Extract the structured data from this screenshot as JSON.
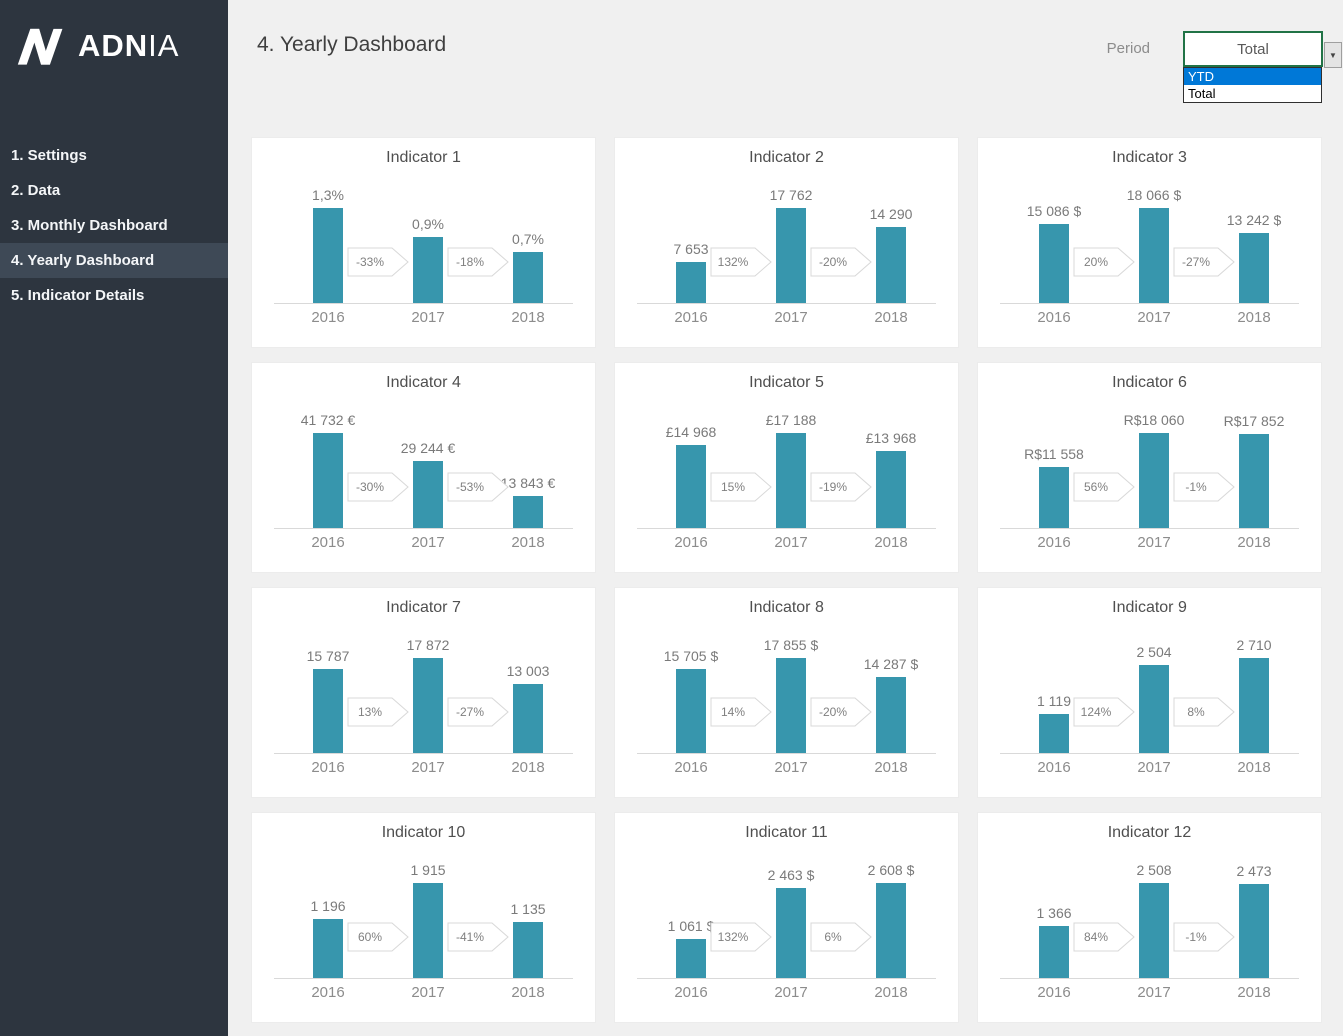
{
  "sidebar": {
    "logo_text_bold": "ADN",
    "logo_text_light": "IA",
    "items": [
      {
        "label": "1. Settings",
        "active": false
      },
      {
        "label": "2. Data",
        "active": false
      },
      {
        "label": "3. Monthly Dashboard",
        "active": false
      },
      {
        "label": "4. Yearly Dashboard",
        "active": true
      },
      {
        "label": "5. Indicator Details",
        "active": false
      }
    ]
  },
  "header": {
    "title": "4. Yearly Dashboard",
    "period_label": "Period",
    "period_value": "Total",
    "dropdown_options": [
      {
        "label": "YTD",
        "highlighted": true
      },
      {
        "label": "Total",
        "highlighted": false
      }
    ]
  },
  "colors": {
    "bar": "#3796ad",
    "sidebar_bg": "#2d353f",
    "sidebar_active_bg": "#3e4956",
    "select_border": "#217346",
    "dropdown_highlight": "#0078d7",
    "main_bg": "#f0f0f0"
  },
  "chart_data": [
    {
      "type": "bar",
      "title": "Indicator 1",
      "categories": [
        "2016",
        "2017",
        "2018"
      ],
      "values": [
        1.3,
        0.9,
        0.7
      ],
      "value_labels": [
        "1,3%",
        "0,9%",
        "0,7%"
      ],
      "changes": [
        "-33%",
        "-18%"
      ]
    },
    {
      "type": "bar",
      "title": "Indicator 2",
      "categories": [
        "2016",
        "2017",
        "2018"
      ],
      "values": [
        7653,
        17762,
        14290
      ],
      "value_labels": [
        "7 653",
        "17 762",
        "14 290"
      ],
      "changes": [
        "132%",
        "-20%"
      ]
    },
    {
      "type": "bar",
      "title": "Indicator 3",
      "categories": [
        "2016",
        "2017",
        "2018"
      ],
      "values": [
        15086,
        18066,
        13242
      ],
      "value_labels": [
        "15 086 $",
        "18 066 $",
        "13 242 $"
      ],
      "changes": [
        "20%",
        "-27%"
      ]
    },
    {
      "type": "bar",
      "title": "Indicator 4",
      "categories": [
        "2016",
        "2017",
        "2018"
      ],
      "values": [
        41732,
        29244,
        13843
      ],
      "value_labels": [
        "41 732 €",
        "29 244 €",
        "13 843 €"
      ],
      "changes": [
        "-30%",
        "-53%"
      ]
    },
    {
      "type": "bar",
      "title": "Indicator 5",
      "categories": [
        "2016",
        "2017",
        "2018"
      ],
      "values": [
        14968,
        17188,
        13968
      ],
      "value_labels": [
        "£14 968",
        "£17 188",
        "£13 968"
      ],
      "changes": [
        "15%",
        "-19%"
      ]
    },
    {
      "type": "bar",
      "title": "Indicator 6",
      "categories": [
        "2016",
        "2017",
        "2018"
      ],
      "values": [
        11558,
        18060,
        17852
      ],
      "value_labels": [
        "R$11 558",
        "R$18 060",
        "R$17 852"
      ],
      "changes": [
        "56%",
        "-1%"
      ]
    },
    {
      "type": "bar",
      "title": "Indicator 7",
      "categories": [
        "2016",
        "2017",
        "2018"
      ],
      "values": [
        15787,
        17872,
        13003
      ],
      "value_labels": [
        "15 787",
        "17 872",
        "13 003"
      ],
      "changes": [
        "13%",
        "-27%"
      ]
    },
    {
      "type": "bar",
      "title": "Indicator 8",
      "categories": [
        "2016",
        "2017",
        "2018"
      ],
      "values": [
        15705,
        17855,
        14287
      ],
      "value_labels": [
        "15 705 $",
        "17 855 $",
        "14 287 $"
      ],
      "changes": [
        "14%",
        "-20%"
      ]
    },
    {
      "type": "bar",
      "title": "Indicator 9",
      "categories": [
        "2016",
        "2017",
        "2018"
      ],
      "values": [
        1119,
        2504,
        2710
      ],
      "value_labels": [
        "1 119",
        "2 504",
        "2 710"
      ],
      "changes": [
        "124%",
        "8%"
      ]
    },
    {
      "type": "bar",
      "title": "Indicator 10",
      "categories": [
        "2016",
        "2017",
        "2018"
      ],
      "values": [
        1196,
        1915,
        1135
      ],
      "value_labels": [
        "1 196",
        "1 915",
        "1 135"
      ],
      "changes": [
        "60%",
        "-41%"
      ]
    },
    {
      "type": "bar",
      "title": "Indicator 11",
      "categories": [
        "2016",
        "2017",
        "2018"
      ],
      "values": [
        1061,
        2463,
        2608
      ],
      "value_labels": [
        "1 061 $",
        "2 463 $",
        "2 608 $"
      ],
      "changes": [
        "132%",
        "6%"
      ]
    },
    {
      "type": "bar",
      "title": "Indicator 12",
      "categories": [
        "2016",
        "2017",
        "2018"
      ],
      "values": [
        1366,
        2508,
        2473
      ],
      "value_labels": [
        "1 366",
        "2 508",
        "2 473"
      ],
      "changes": [
        "84%",
        "-1%"
      ]
    }
  ]
}
